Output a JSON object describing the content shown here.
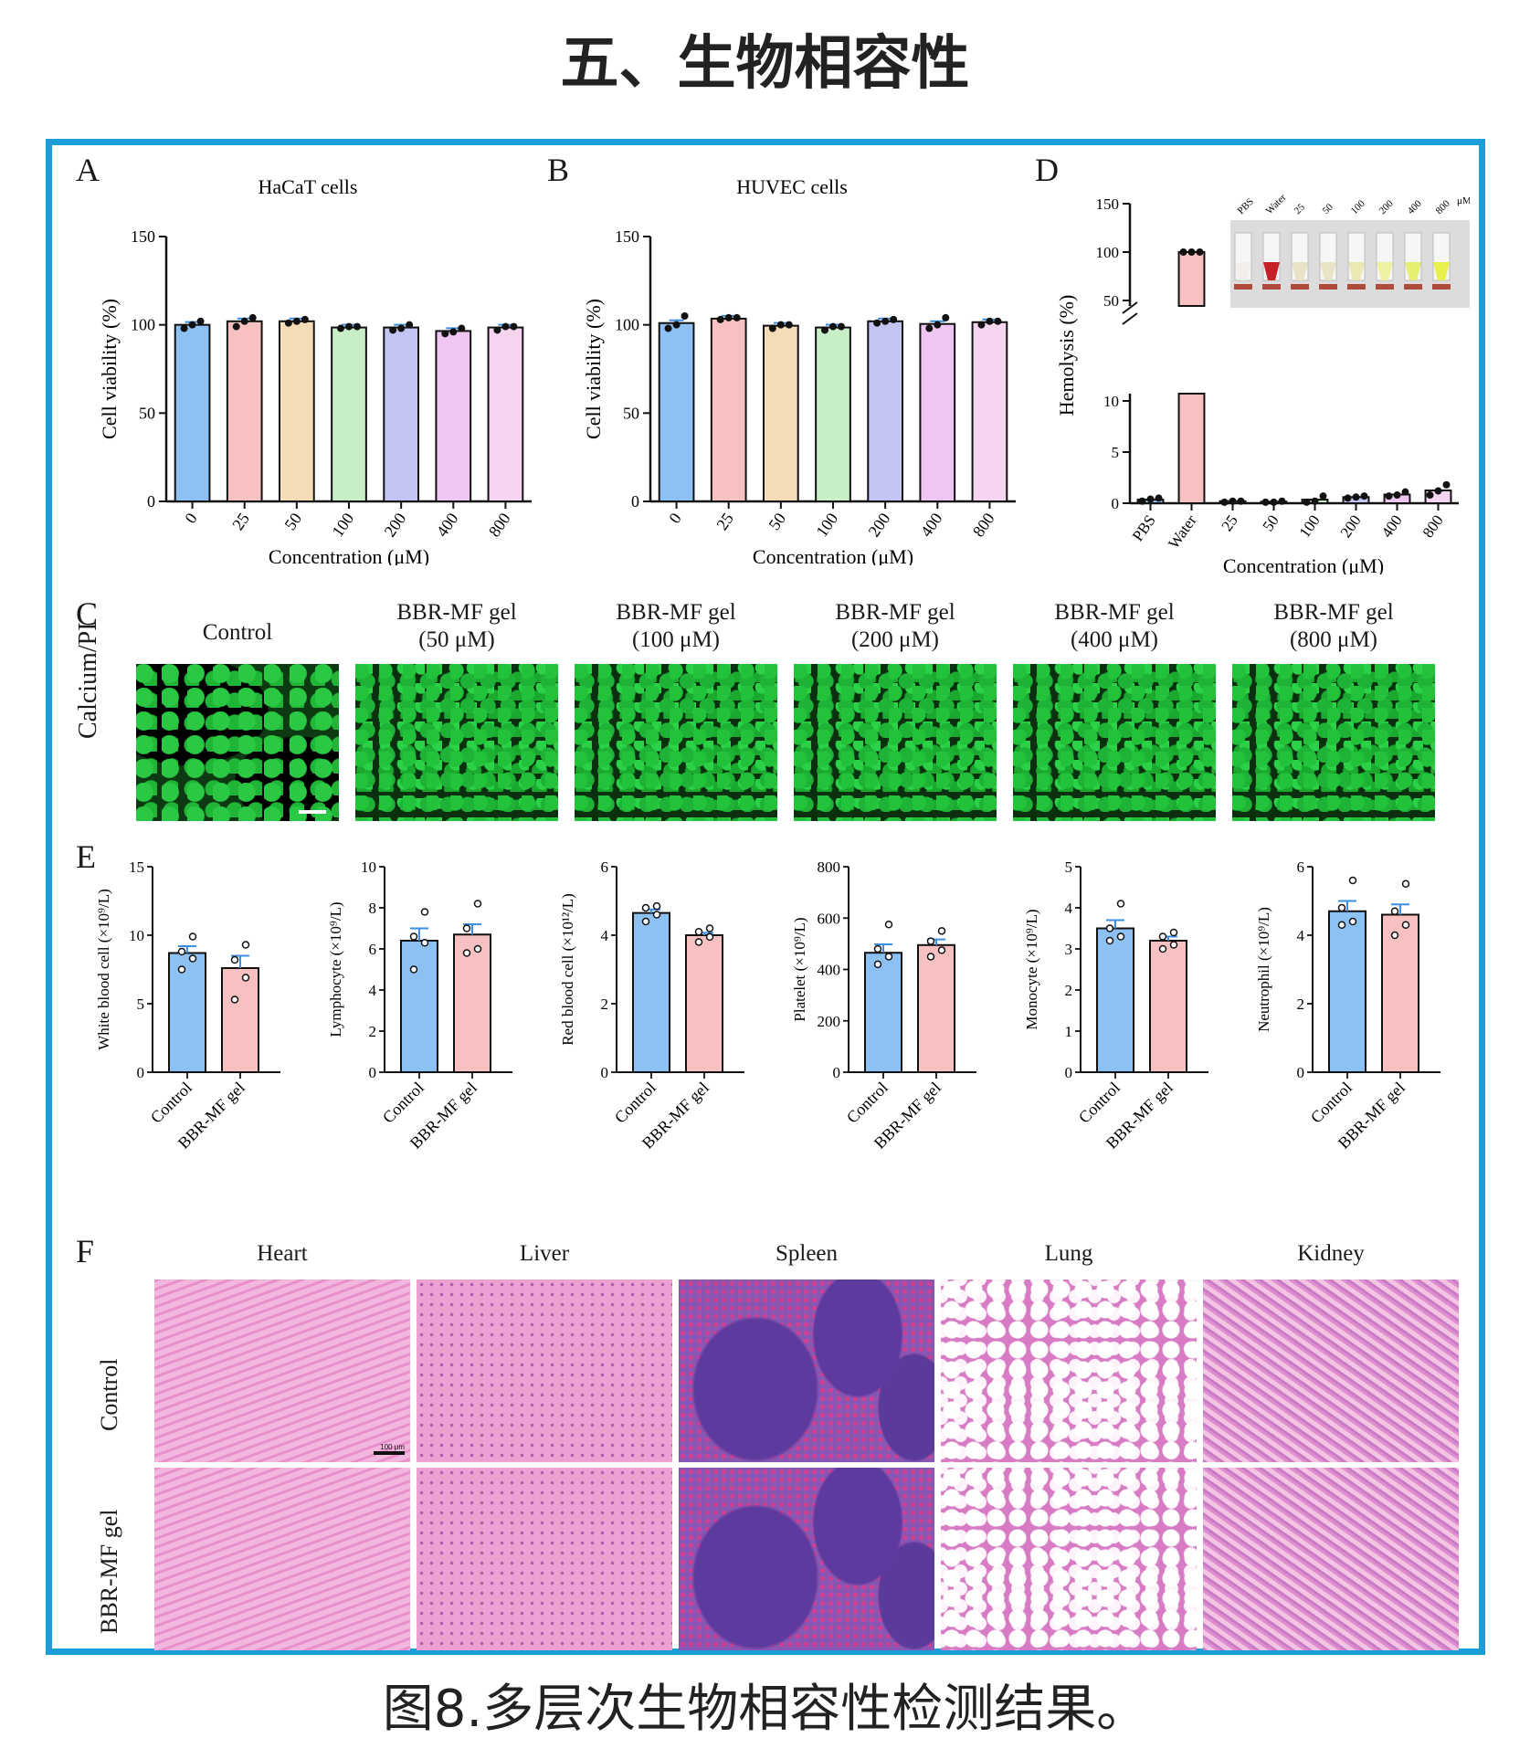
{
  "page_title": "五、生物相容性",
  "caption": "图8.多层次生物相容性检测结果。",
  "colors": {
    "frame": "#199ed8",
    "c0": "#8ec1f3",
    "c25": "#f7c1c1",
    "c50": "#f4dcb7",
    "c100": "#c8eec7",
    "c200": "#c4c4f4",
    "c400": "#efc6f2",
    "c800": "#f5d4f0",
    "control_bar": "#8ec1f3",
    "gel_bar": "#f7c1c1",
    "error": "#3b8ee0"
  },
  "panel_letters": {
    "A": "A",
    "B": "B",
    "C": "C",
    "D": "D",
    "E": "E",
    "F": "F"
  },
  "chart_data": [
    {
      "id": "A",
      "type": "bar",
      "title": "HaCaT cells",
      "xlabel": "Concentration (μM)",
      "ylabel": "Cell viability (%)",
      "categories": [
        "0",
        "25",
        "50",
        "100",
        "200",
        "400",
        "800"
      ],
      "values": [
        100,
        102,
        102,
        98.5,
        98.5,
        96.5,
        98.5
      ],
      "points": [
        [
          98,
          100,
          102
        ],
        [
          99,
          102,
          104
        ],
        [
          101,
          102,
          103
        ],
        [
          98,
          99,
          99
        ],
        [
          97,
          98,
          100
        ],
        [
          95,
          96,
          98
        ],
        [
          97,
          99,
          99
        ]
      ],
      "ylim": [
        0,
        150
      ],
      "yticks": [
        0,
        50,
        100,
        150
      ]
    },
    {
      "id": "B",
      "type": "bar",
      "title": "HUVEC cells",
      "xlabel": "Concentration (μM)",
      "ylabel": "Cell viability (%)",
      "categories": [
        "0",
        "25",
        "50",
        "100",
        "200",
        "400",
        "800"
      ],
      "values": [
        101,
        103.5,
        99.5,
        98.5,
        102,
        100.5,
        101.5
      ],
      "points": [
        [
          98,
          100,
          105
        ],
        [
          103,
          104,
          104
        ],
        [
          98,
          100,
          100
        ],
        [
          97,
          99,
          99
        ],
        [
          101,
          102,
          103
        ],
        [
          98,
          100,
          104
        ],
        [
          100,
          102,
          102
        ]
      ],
      "ylim": [
        0,
        150
      ],
      "yticks": [
        0,
        50,
        100,
        150
      ]
    },
    {
      "id": "D",
      "type": "bar",
      "xlabel": "Concentration (μM)",
      "ylabel": "Hemolysis (%)",
      "categories": [
        "PBS",
        "Water",
        "25",
        "50",
        "100",
        "200",
        "400",
        "800"
      ],
      "values": [
        0.35,
        100,
        0.2,
        0.15,
        0.35,
        0.6,
        0.85,
        1.25
      ],
      "points": [
        [
          0.2,
          0.4,
          0.5
        ],
        [
          100,
          100,
          100
        ],
        [
          0.1,
          0.2,
          0.2
        ],
        [
          0.1,
          0.1,
          0.2
        ],
        [
          0.1,
          0.2,
          0.7
        ],
        [
          0.5,
          0.6,
          0.7
        ],
        [
          0.7,
          0.8,
          1.1
        ],
        [
          0.8,
          1.2,
          1.8
        ]
      ],
      "yticks_lower": [
        0,
        5,
        10
      ],
      "yticks_upper": [
        50,
        100,
        150
      ],
      "axis_break": true,
      "inset_labels": [
        "PBS",
        "Water",
        "25",
        "50",
        "100",
        "200",
        "400",
        "800"
      ],
      "inset_unit": "μM"
    },
    {
      "id": "E1",
      "type": "bar",
      "ylabel": "White blood cell (×10⁹/L)",
      "categories": [
        "Control",
        "BBR-MF gel"
      ],
      "values": [
        8.7,
        7.6
      ],
      "points": [
        [
          7.5,
          8.3,
          8.8,
          9.9
        ],
        [
          5.3,
          6.9,
          8.2,
          9.3
        ]
      ],
      "sem": [
        0.5,
        0.9
      ],
      "ylim": [
        0,
        15
      ],
      "yticks": [
        0,
        5,
        10,
        15
      ]
    },
    {
      "id": "E2",
      "type": "bar",
      "ylabel": "Lymphocyte (×10⁹/L)",
      "categories": [
        "Control",
        "BBR-MF gel"
      ],
      "values": [
        6.4,
        6.7
      ],
      "points": [
        [
          5.0,
          6.3,
          6.6,
          7.8
        ],
        [
          5.8,
          6.0,
          7.0,
          8.2
        ]
      ],
      "sem": [
        0.6,
        0.5
      ],
      "ylim": [
        0,
        10
      ],
      "yticks": [
        0,
        2,
        4,
        6,
        8,
        10
      ]
    },
    {
      "id": "E3",
      "type": "bar",
      "ylabel": "Red blood cell (×10¹²/L)",
      "categories": [
        "Control",
        "BBR-MF gel"
      ],
      "values": [
        4.65,
        4.0
      ],
      "points": [
        [
          4.4,
          4.6,
          4.8,
          4.85
        ],
        [
          3.8,
          3.95,
          4.1,
          4.2
        ]
      ],
      "sem": [
        0.1,
        0.07
      ],
      "ylim": [
        0,
        6
      ],
      "yticks": [
        0,
        2,
        4,
        6
      ]
    },
    {
      "id": "E4",
      "type": "bar",
      "ylabel": "Platelet (×10⁹/L)",
      "categories": [
        "Control",
        "BBR-MF gel"
      ],
      "values": [
        465,
        495
      ],
      "points": [
        [
          420,
          450,
          480,
          575
        ],
        [
          450,
          475,
          510,
          550
        ]
      ],
      "sem": [
        33,
        22
      ],
      "ylim": [
        0,
        800
      ],
      "yticks": [
        0,
        200,
        400,
        600,
        800
      ]
    },
    {
      "id": "E5",
      "type": "bar",
      "ylabel": "Monocyte (×10⁹/L)",
      "categories": [
        "Control",
        "BBR-MF gel"
      ],
      "values": [
        3.5,
        3.2
      ],
      "points": [
        [
          3.2,
          3.3,
          3.5,
          4.1
        ],
        [
          3.0,
          3.1,
          3.3,
          3.4
        ]
      ],
      "sem": [
        0.2,
        0.1
      ],
      "ylim": [
        0,
        5
      ],
      "yticks": [
        0,
        1,
        2,
        3,
        4,
        5
      ]
    },
    {
      "id": "E6",
      "type": "bar",
      "ylabel": "Neutrophil (×10⁹/L)",
      "categories": [
        "Control",
        "BBR-MF gel"
      ],
      "values": [
        4.7,
        4.6
      ],
      "points": [
        [
          4.3,
          4.4,
          4.8,
          5.6
        ],
        [
          4.0,
          4.3,
          4.7,
          5.5
        ]
      ],
      "sem": [
        0.3,
        0.3
      ],
      "ylim": [
        0,
        6
      ],
      "yticks": [
        0,
        2,
        4,
        6
      ]
    }
  ],
  "panel_c": {
    "row_label": "Calcium/PI",
    "columns": [
      {
        "line1": "Control",
        "line2": ""
      },
      {
        "line1": "BBR-MF gel",
        "line2": "(50 μM)"
      },
      {
        "line1": "BBR-MF gel",
        "line2": "(100 μM)"
      },
      {
        "line1": "BBR-MF gel",
        "line2": "(200 μM)"
      },
      {
        "line1": "BBR-MF gel",
        "line2": "(400 μM)"
      },
      {
        "line1": "BBR-MF gel",
        "line2": "(800 μM)"
      }
    ]
  },
  "panel_f": {
    "organs": [
      "Heart",
      "Liver",
      "Spleen",
      "Lung",
      "Kidney"
    ],
    "rows": [
      "Control",
      "BBR-MF gel"
    ],
    "scale_label": "100 μm"
  }
}
